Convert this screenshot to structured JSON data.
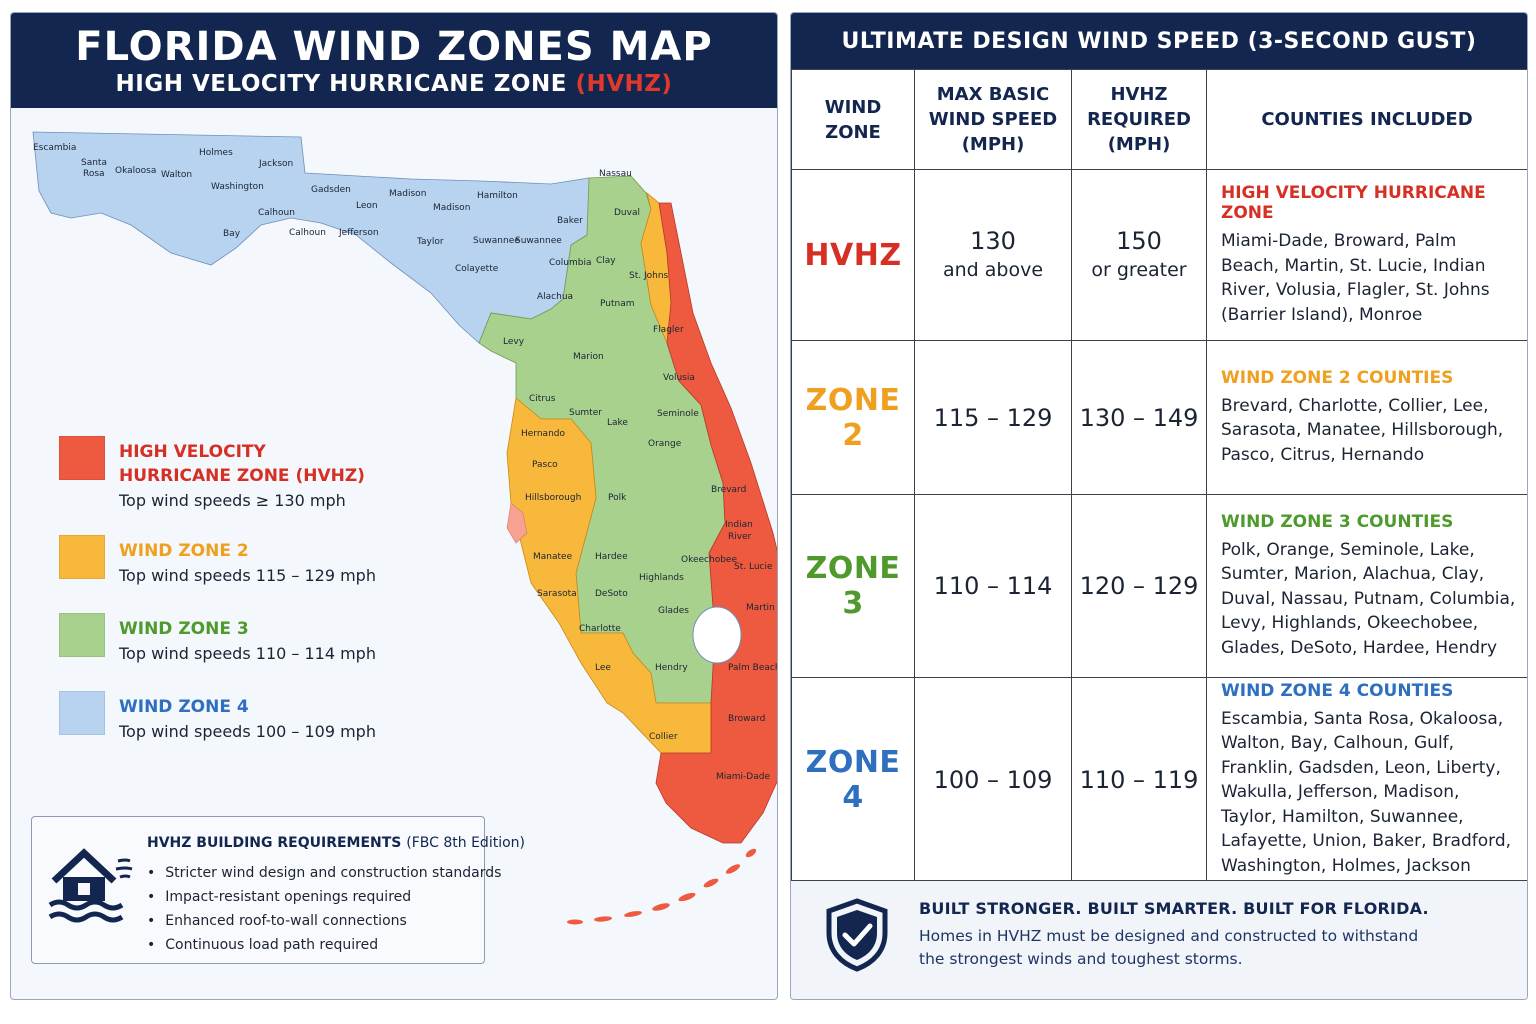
{
  "left": {
    "title": "FLORIDA WIND ZONES MAP",
    "subtitle_prefix": "HIGH VELOCITY HURRICANE ZONE",
    "subtitle_highlight": "(HVHZ)"
  },
  "colors": {
    "navy": "#13264f",
    "hvhz": "#ee5a3f",
    "zone2": "#f8b83c",
    "zone3": "#a9d18e",
    "zone4": "#b7d3f0",
    "hvhz_text": "#d62f24",
    "zone2_text": "#f0a020",
    "zone3_text": "#4e9a2c",
    "zone4_text": "#2e6fbf"
  },
  "legend": [
    {
      "title_line1": "HIGH VELOCITY",
      "title_line2": "HURRICANE ZONE (HVHZ)",
      "desc": "Top wind speeds ≥ 130 mph"
    },
    {
      "title_line1": "WIND ZONE 2",
      "title_line2": "",
      "desc": "Top wind speeds 115 – 129 mph"
    },
    {
      "title_line1": "WIND ZONE 3",
      "title_line2": "",
      "desc": "Top wind speeds 110 – 114 mph"
    },
    {
      "title_line1": "WIND ZONE 4",
      "title_line2": "",
      "desc": "Top wind speeds 100 – 109 mph"
    }
  ],
  "requirements": {
    "title": "HVHZ BUILDING REQUIREMENTS",
    "edition": "(FBC 8th Edition)",
    "items": [
      "Stricter wind design and construction standards",
      "Impact-resistant openings required",
      "Enhanced roof-to-wall connections",
      "Continuous load path required"
    ]
  },
  "map_labels": {
    "escambia": "Escambia",
    "santa_rosa_1": "Santa",
    "santa_rosa_2": "Rosa",
    "okaloosa": "Okaloosa",
    "walton": "Walton",
    "holmes": "Holmes",
    "jackson": "Jackson",
    "washington": "Washington",
    "gadsden": "Gadsden",
    "calhoun_n": "Calhoun",
    "bay": "Bay",
    "calhoun": "Calhoun",
    "leon": "Leon",
    "jefferson": "Jefferson",
    "madison": "Madison",
    "madison2": "Madison",
    "taylor": "Taylor",
    "hamilton": "Hamilton",
    "suwannee": "Suwannee",
    "suwannee2": "Suwannee",
    "lafayette": "Colayette",
    "columbia": "Columbia",
    "baker": "Baker",
    "nassau": "Nassau",
    "duval": "Duval",
    "clay": "Clay",
    "st_johns": "St. Johns",
    "alachua": "Alachua",
    "putnam": "Putnam",
    "flagler": "Flagler",
    "levy": "Levy",
    "marion": "Marion",
    "volusia": "Volusia",
    "citrus": "Citrus",
    "sumter": "Sumter",
    "lake": "Lake",
    "seminole": "Seminole",
    "orange": "Orange",
    "hernando": "Hernando",
    "pasco": "Pasco",
    "hillsborough": "Hillsborough",
    "polk": "Polk",
    "brevard": "Brevard",
    "indian_river_1": "Indian",
    "indian_river_2": "River",
    "osceola": "Okeechobee",
    "st_lucie": "St. Lucie",
    "manatee": "Manatee",
    "hardee": "Hardee",
    "highlands": "Highlands",
    "sarasota": "Sarasota",
    "desoto": "DeSoto",
    "glades": "Glades",
    "martin": "Martin",
    "charlotte": "Charlotte",
    "lee": "Lee",
    "hendry": "Hendry",
    "palm_beach": "Palm Beach",
    "broward": "Broward",
    "collier": "Collier",
    "miami_dade": "Miami-Dade"
  },
  "table": {
    "title": "ULTIMATE DESIGN WIND SPEED (3-SECOND GUST)",
    "headers": {
      "zone_1": "WIND",
      "zone_2": "ZONE",
      "max_1": "MAX BASIC",
      "max_2": "WIND SPEED",
      "max_3": "(MPH)",
      "hvhz_1": "HVHZ",
      "hvhz_2": "REQUIRED",
      "hvhz_3": "(MPH)",
      "counties": "COUNTIES INCLUDED"
    },
    "rows": [
      {
        "zone": "HVHZ",
        "max_main": "130",
        "max_sub": "and above",
        "req_main": "150",
        "req_sub": "or greater",
        "county_heading": "HIGH VELOCITY HURRICANE ZONE",
        "counties": "Miami-Dade, Broward, Palm Beach, Martin, St. Lucie, Indian River, Volusia, Flagler, St. Johns (Barrier Island), Monroe"
      },
      {
        "zone": "ZONE 2",
        "max_main": "115 – 129",
        "max_sub": "",
        "req_main": "130 – 149",
        "req_sub": "",
        "county_heading": "WIND ZONE 2 COUNTIES",
        "counties": "Brevard, Charlotte, Collier, Lee, Sarasota, Manatee, Hillsborough, Pasco, Citrus, Hernando"
      },
      {
        "zone": "ZONE 3",
        "max_main": "110 – 114",
        "max_sub": "",
        "req_main": "120 – 129",
        "req_sub": "",
        "county_heading": "WIND ZONE 3 COUNTIES",
        "counties": "Polk, Orange, Seminole, Lake, Sumter, Marion, Alachua, Clay, Duval, Nassau, Putnam, Columbia, Levy, Highlands, Okeechobee, Glades, DeSoto, Hardee, Hendry"
      },
      {
        "zone": "ZONE 4",
        "max_main": "100 – 109",
        "max_sub": "",
        "req_main": "110 – 119",
        "req_sub": "",
        "county_heading": "WIND ZONE 4 COUNTIES",
        "counties": "Escambia, Santa Rosa, Okaloosa, Walton, Bay, Calhoun, Gulf, Franklin, Gadsden, Leon, Liberty, Wakulla, Jefferson, Madison, Taylor, Hamilton, Suwannee, Lafayette, Union, Baker, Bradford, Washington, Holmes, Jackson"
      }
    ]
  },
  "footer": {
    "title": "BUILT STRONGER. BUILT SMARTER. BUILT FOR FLORIDA.",
    "text": "Homes in HVHZ must be designed and constructed to withstand the strongest winds and toughest storms."
  },
  "icons": {
    "house": "house-flood-icon",
    "shield": "shield-check-icon"
  }
}
